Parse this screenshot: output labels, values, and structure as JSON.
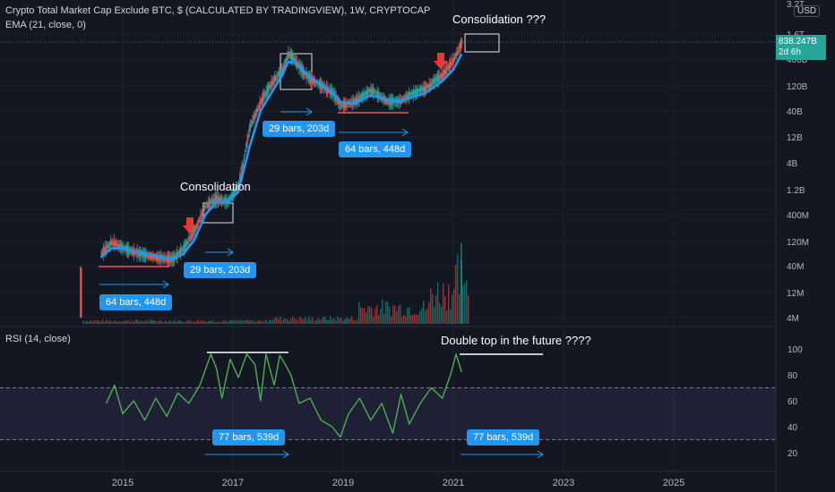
{
  "header": {
    "title": "Crypto Total Market Cap Exclude BTC, $ (CALCULATED BY TRADINGVIEW), 1W, CRYPTOCAP",
    "ema": "EMA (21, close, 0)",
    "rsi": "RSI (14, close)",
    "currency": "USD"
  },
  "price_tag": {
    "value": "838.247B",
    "countdown": "2d 6h",
    "color": "#26a69a"
  },
  "annotations": {
    "consolidation_left": "Consolidation",
    "consolidation_top": "Consolidation ???",
    "double_top": "Double top in the future ????",
    "tags": [
      "64 bars, 448d",
      "29 bars, 203d",
      "29 bars, 203d",
      "64 bars, 448d",
      "77 bars, 539d",
      "77 bars, 539d"
    ]
  },
  "colors": {
    "background": "#131722",
    "ema": "#2196f3",
    "rsi": "#4caf50",
    "bull": "#26a69a",
    "bear": "#ef5350",
    "band": "#7e57c2",
    "arrow": "#e53935"
  },
  "chart_data": [
    {
      "type": "line",
      "pane": "price",
      "scale": "log",
      "x_axis": [
        "2015",
        "2017",
        "2019",
        "2021",
        "2023",
        "2025"
      ],
      "y_ticks": [
        "3.2T",
        "1.6T",
        "400B",
        "120B",
        "40B",
        "12B",
        "4B",
        "1.2B",
        "400M",
        "120M",
        "40M",
        "12M",
        "4M"
      ],
      "series": [
        {
          "name": "",
          "x": [
            2014.6,
            2014.8,
            2015.0,
            2015.3,
            2015.6,
            2015.9,
            2016.1,
            2016.3,
            2016.5,
            2016.7,
            2016.9,
            2017.1,
            2017.3,
            2017.5,
            2017.7,
            2017.9,
            2018.0,
            2018.1,
            2018.3,
            2018.5,
            2018.8,
            2018.95,
            2019.2,
            2019.5,
            2019.8,
            2020.0,
            2020.2,
            2020.5,
            2020.8,
            2021.0,
            2021.15
          ],
          "values": [
            70000000.0,
            120000000.0,
            90000000.0,
            70000000.0,
            60000000.0,
            55000000.0,
            90000000.0,
            200000000.0,
            600000000.0,
            800000000.0,
            700000000.0,
            1500000000.0,
            20000000000.0,
            60000000000.0,
            140000000000.0,
            250000000000.0,
            500000000000.0,
            400000000000.0,
            200000000000.0,
            140000000000.0,
            90000000000.0,
            50000000000.0,
            60000000000.0,
            100000000000.0,
            60000000000.0,
            60000000000.0,
            80000000000.0,
            110000000000.0,
            200000000000.0,
            400000000000.0,
            838000000000.0
          ]
        },
        {
          "name": "EMA (21, close, 0)",
          "x": [
            2014.6,
            2014.8,
            2015.0,
            2015.3,
            2015.6,
            2015.9,
            2016.1,
            2016.3,
            2016.5,
            2016.7,
            2016.9,
            2017.1,
            2017.3,
            2017.5,
            2017.7,
            2017.9,
            2018.0,
            2018.1,
            2018.3,
            2018.5,
            2018.8,
            2018.95,
            2019.2,
            2019.5,
            2019.8,
            2020.0,
            2020.2,
            2020.5,
            2020.8,
            2021.0,
            2021.15
          ],
          "values": [
            60000000.0,
            90000000.0,
            90000000.0,
            75000000.0,
            65000000.0,
            55000000.0,
            70000000.0,
            130000000.0,
            400000000.0,
            700000000.0,
            700000000.0,
            1100000000.0,
            8000000000.0,
            40000000000.0,
            90000000000.0,
            200000000000.0,
            350000000000.0,
            350000000000.0,
            230000000000.0,
            150000000000.0,
            90000000000.0,
            60000000000.0,
            55000000000.0,
            80000000000.0,
            65000000000.0,
            60000000000.0,
            70000000000.0,
            90000000000.0,
            150000000000.0,
            250000000000.0,
            500000000000.0
          ]
        }
      ]
    },
    {
      "type": "line",
      "pane": "rsi",
      "x_axis": [
        "2015",
        "2017",
        "2019",
        "2021",
        "2023",
        "2025"
      ],
      "y_ticks": [
        100,
        80,
        60,
        40,
        20
      ],
      "ylim": [
        10,
        110
      ],
      "band": [
        30,
        70
      ],
      "series": [
        {
          "name": "",
          "x": [
            2014.7,
            2014.85,
            2015.0,
            2015.2,
            2015.4,
            2015.6,
            2015.8,
            2016.0,
            2016.2,
            2016.4,
            2016.6,
            2016.7,
            2016.8,
            2016.95,
            2017.1,
            2017.25,
            2017.4,
            2017.5,
            2017.6,
            2017.75,
            2017.85,
            2017.95,
            2018.05,
            2018.2,
            2018.4,
            2018.6,
            2018.8,
            2018.95,
            2019.1,
            2019.3,
            2019.5,
            2019.7,
            2019.9,
            2020.05,
            2020.2,
            2020.4,
            2020.6,
            2020.8,
            2020.95,
            2021.05,
            2021.15
          ],
          "values": [
            58,
            72,
            50,
            60,
            45,
            62,
            48,
            66,
            58,
            72,
            96,
            85,
            62,
            92,
            78,
            96,
            88,
            60,
            96,
            72,
            95,
            88,
            80,
            58,
            62,
            45,
            40,
            32,
            50,
            62,
            45,
            58,
            35,
            65,
            42,
            58,
            70,
            62,
            80,
            96,
            82
          ]
        }
      ]
    }
  ]
}
